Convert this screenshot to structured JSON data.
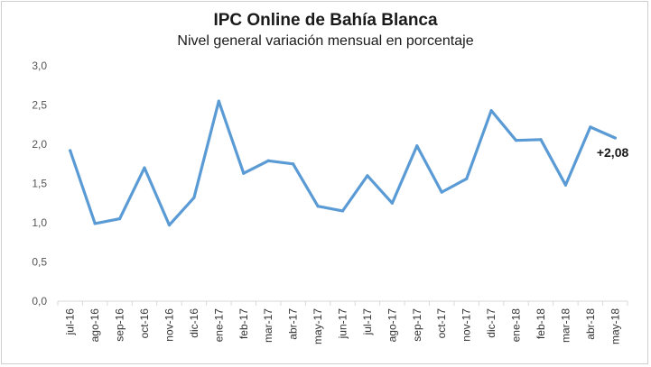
{
  "chart_data": {
    "type": "line",
    "title": "IPC Online de Bahía Blanca",
    "subtitle": "Nivel general variación mensual en porcentaje",
    "xlabel": "",
    "ylabel": "",
    "categories": [
      "jul-16",
      "ago-16",
      "sep-16",
      "oct-16",
      "nov-16",
      "dic-16",
      "ene-17",
      "feb-17",
      "mar-17",
      "abr-17",
      "may-17",
      "jun-17",
      "jul-17",
      "ago-17",
      "sep-17",
      "oct-17",
      "nov-17",
      "dic-17",
      "ene-18",
      "feb-18",
      "mar-18",
      "abr-18",
      "may-18"
    ],
    "series": [
      {
        "values": [
          1.92,
          0.99,
          1.05,
          1.7,
          0.97,
          1.32,
          2.55,
          1.63,
          1.79,
          1.75,
          1.21,
          1.15,
          1.6,
          1.25,
          1.98,
          1.39,
          1.56,
          2.43,
          2.05,
          2.06,
          1.48,
          2.22,
          2.08
        ],
        "color": "#5b9bd5"
      }
    ],
    "ylim": [
      0,
      3
    ],
    "yticks": [
      "0,0",
      "0,5",
      "1,0",
      "1,5",
      "2,0",
      "2,5",
      "3,0"
    ],
    "grid": false,
    "legend": "none",
    "annotation": {
      "text": "+2,08",
      "index": 22
    }
  }
}
